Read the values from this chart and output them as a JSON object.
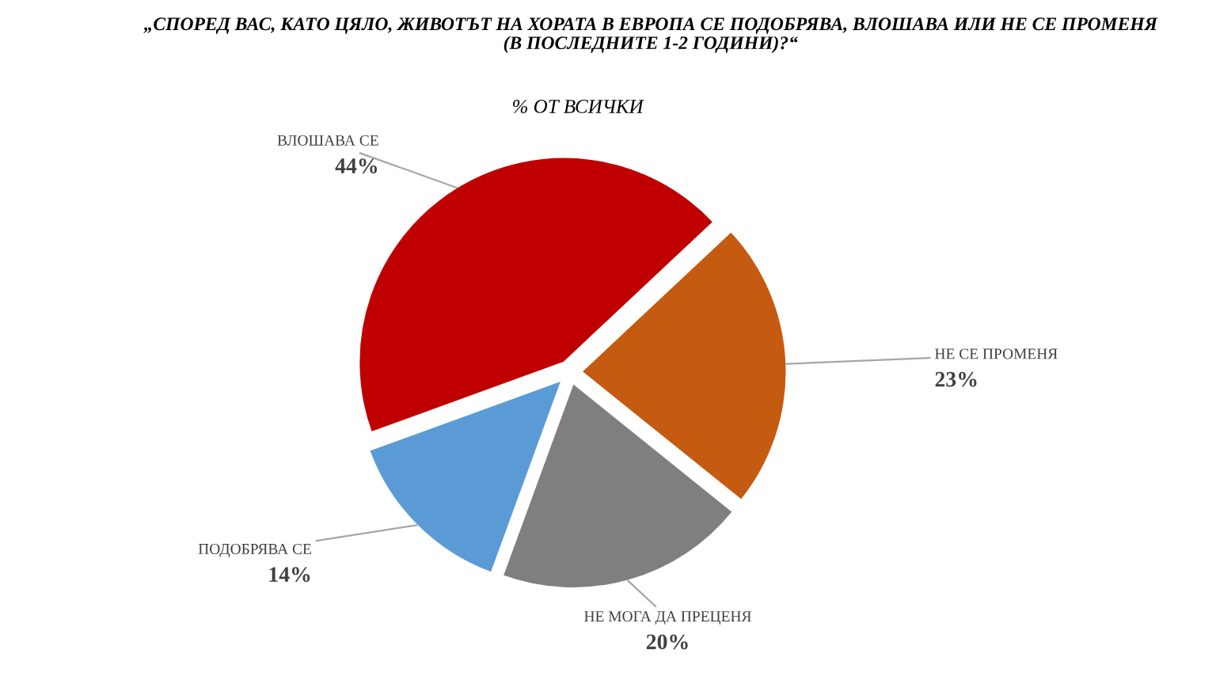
{
  "chart_data": {
    "type": "pie",
    "title": "„СПОРЕД ВАС, КАТО ЦЯЛО, ЖИВОТЪТ НА ХОРАТА В ЕВРОПА СЕ ПОДОБРЯВА, ВЛОШАВА ИЛИ НЕ СЕ ПРОМЕНЯ\n(В ПОСЛЕДНИТЕ 1-2 ГОДИНИ)?“",
    "subtitle": "% ОТ ВСИЧКИ",
    "categories": [
      "ВЛОШАВА СЕ",
      "НЕ СЕ ПРОМЕНЯ",
      "НЕ МОГА ДА ПРЕЦЕНЯ",
      "ПОДОБРЯВА СЕ"
    ],
    "values": [
      44,
      23,
      20,
      14
    ],
    "colors": [
      "#c00000",
      "#c55a11",
      "#7f7f7f",
      "#5b9bd5"
    ],
    "value_labels": [
      "44%",
      "23%",
      "20%",
      "14%"
    ]
  }
}
